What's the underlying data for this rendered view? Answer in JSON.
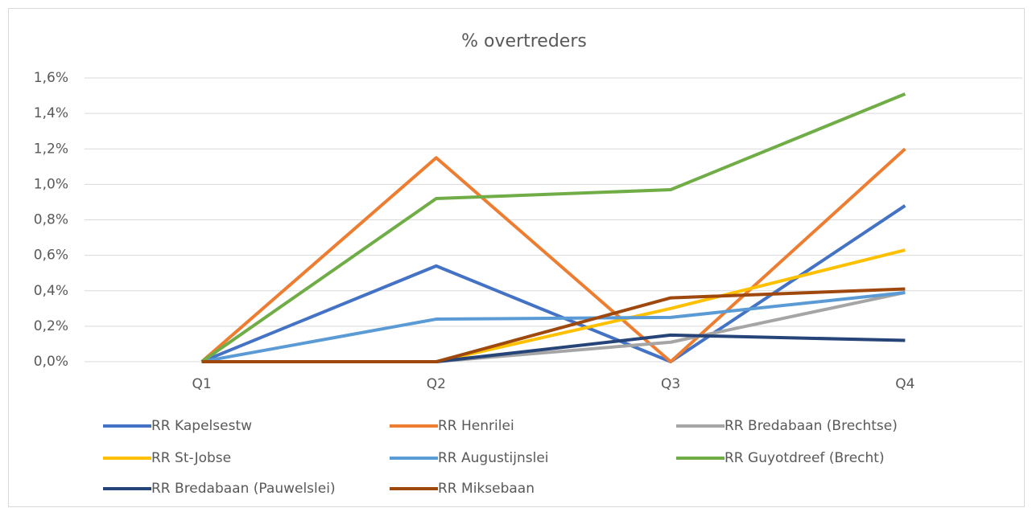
{
  "chart_data": {
    "type": "line",
    "title": "% overtreders",
    "categories": [
      "Q1",
      "Q2",
      "Q3",
      "Q4"
    ],
    "ylim": [
      0,
      1.6
    ],
    "yticks": [
      {
        "value": 0,
        "label": "0,0%"
      },
      {
        "value": 0.2,
        "label": "0,2%"
      },
      {
        "value": 0.4,
        "label": "0,4%"
      },
      {
        "value": 0.6,
        "label": "0,6%"
      },
      {
        "value": 0.8,
        "label": "0,8%"
      },
      {
        "value": 1.0,
        "label": "1,0%"
      },
      {
        "value": 1.2,
        "label": "1,2%"
      },
      {
        "value": 1.4,
        "label": "1,4%"
      },
      {
        "value": 1.6,
        "label": "1,6%"
      }
    ],
    "grid": true,
    "legend": "bottom",
    "series": [
      {
        "name": "RR Kapelsestw",
        "color": "#4472c4",
        "values": [
          0,
          0.54,
          0,
          0.88
        ]
      },
      {
        "name": "RR Henrilei",
        "color": "#ed7d31",
        "values": [
          0,
          1.15,
          0,
          1.2
        ]
      },
      {
        "name": "RR Bredabaan (Brechtse)",
        "color": "#a5a5a5",
        "values": [
          0,
          0,
          0.11,
          0.39
        ]
      },
      {
        "name": "RR St-Jobse",
        "color": "#ffc000",
        "values": [
          0,
          0,
          0.3,
          0.63
        ]
      },
      {
        "name": "RR Augustijnslei",
        "color": "#5b9bd5",
        "values": [
          0,
          0.24,
          0.25,
          0.39
        ]
      },
      {
        "name": "RR Guyotdreef (Brecht)",
        "color": "#70ad47",
        "values": [
          0,
          0.92,
          0.97,
          1.51
        ]
      },
      {
        "name": "RR Bredabaan (Pauwelslei)",
        "color": "#264478",
        "values": [
          0,
          0,
          0.15,
          0.12
        ]
      },
      {
        "name": "RR Miksebaan",
        "color": "#9e480e",
        "values": [
          0,
          0,
          0.36,
          0.41
        ]
      }
    ]
  }
}
